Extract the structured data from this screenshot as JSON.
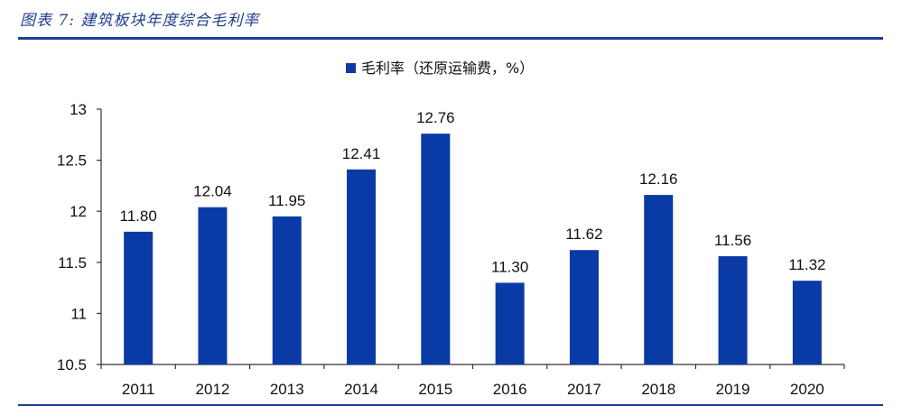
{
  "figure": {
    "title": "图表 7:  建筑板块年度综合毛利率"
  },
  "chart_data": {
    "type": "bar",
    "categories": [
      "2011",
      "2012",
      "2013",
      "2014",
      "2015",
      "2016",
      "2017",
      "2018",
      "2019",
      "2020"
    ],
    "series": [
      {
        "name": "毛利率（还原运输费，%）",
        "values": [
          11.8,
          12.04,
          11.95,
          12.41,
          12.76,
          11.3,
          11.62,
          12.16,
          11.56,
          11.32
        ],
        "data_labels": [
          "11.80",
          "12.04",
          "11.95",
          "12.41",
          "12.76",
          "11.30",
          "11.62",
          "12.16",
          "11.56",
          "11.32"
        ],
        "color": "#0a3aa6"
      }
    ],
    "ylim": [
      10.5,
      13
    ],
    "yticks": [
      10.5,
      11,
      11.5,
      12,
      12.5,
      13
    ],
    "ytick_labels": [
      "10.5",
      "11",
      "11.5",
      "12",
      "12.5",
      "13"
    ],
    "title": "",
    "xlabel": "",
    "ylabel": "",
    "legend": "top-center",
    "grid": false
  }
}
